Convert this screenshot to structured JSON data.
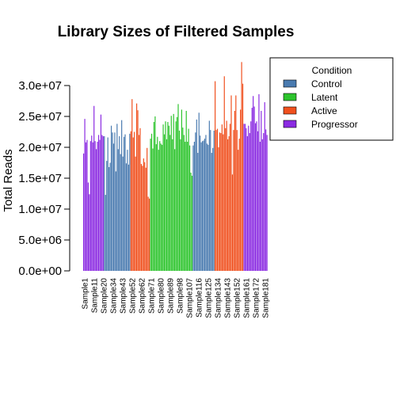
{
  "chart_data": {
    "type": "bar",
    "title": "Library Sizes of Filtered Samples",
    "xlabel": "",
    "ylabel": "Total Reads",
    "ylim": [
      0,
      30000000
    ],
    "yticks": [
      {
        "value": 0,
        "label": "0.0e+00"
      },
      {
        "value": 5000000,
        "label": "5.0e+06"
      },
      {
        "value": 10000000,
        "label": "1.0e+07"
      },
      {
        "value": 15000000,
        "label": "1.5e+07"
      },
      {
        "value": 20000000,
        "label": "2.0e+07"
      },
      {
        "value": 25000000,
        "label": "2.5e+07"
      },
      {
        "value": 30000000,
        "label": "3.0e+07"
      }
    ],
    "legend": {
      "title": "Condition",
      "placement": "top-right",
      "entries": [
        {
          "name": "Control",
          "color": "#4A7BB0"
        },
        {
          "name": "Latent",
          "color": "#2DC42D"
        },
        {
          "name": "Active",
          "color": "#F0501E"
        },
        {
          "name": "Progressor",
          "color": "#8B2BE2"
        }
      ]
    },
    "colors": {
      "Control": "#4A7BB0",
      "Latent": "#2DC42D",
      "Active": "#F0501E",
      "Progressor": "#8B2BE2"
    },
    "x_tick_labels": [
      "Sample1",
      "Sample11",
      "Sample20",
      "Sample34",
      "Sample43",
      "Sample52",
      "Sample62",
      "Sample71",
      "Sample80",
      "Sample89",
      "Sample98",
      "Sample107",
      "Sample116",
      "Sample125",
      "Sample134",
      "Sample143",
      "Sample152",
      "Sample161",
      "Sample172",
      "Sample181"
    ],
    "segments": [
      {
        "condition": "Progressor",
        "values": [
          19000000,
          24600000,
          20800000,
          21200000,
          14300000,
          12400000,
          21000000,
          21900000,
          20800000,
          26700000,
          21000000,
          19700000,
          20900000,
          22000000,
          21200000,
          25300000,
          22000000,
          21800000
        ]
      },
      {
        "condition": "Control",
        "values": [
          21800000,
          12300000,
          17800000,
          21600000,
          16800000,
          17500000,
          23500000,
          22400000,
          20600000,
          22400000,
          16100000,
          23800000,
          19700000,
          21800000,
          18900000,
          24400000,
          18500000,
          21700000,
          22100000,
          17400000,
          19600000,
          17200000,
          22200000
        ]
      },
      {
        "condition": "Active",
        "values": [
          22600000,
          27800000,
          21600000,
          22500000,
          18500000,
          27100000,
          26000000,
          22000000,
          23100000,
          17300000,
          17000000,
          18200000,
          17600000,
          16700000,
          19900000,
          12000000,
          11700000
        ]
      },
      {
        "condition": "Latent",
        "values": [
          21400000,
          22200000,
          19800000,
          24100000,
          25000000,
          20500000,
          21700000,
          19600000,
          21000000,
          20600000,
          20400000,
          23700000,
          22100000,
          24200000,
          21300000,
          24100000,
          23500000,
          22000000,
          25100000,
          21300000,
          25400000,
          19700000,
          24200000,
          24900000,
          27000000,
          22700000,
          21300000,
          26100000,
          23200000,
          22000000,
          20900000,
          25900000,
          20900000,
          23000000,
          20300000,
          15900000,
          15400000
        ]
      },
      {
        "condition": "Control",
        "values": [
          20300000,
          20900000,
          22400000,
          24500000,
          19100000,
          25600000,
          21900000,
          20800000,
          21000000,
          21100000,
          21400000,
          22000000,
          20600000,
          20400000,
          24300000,
          22800000,
          19100000,
          19900000,
          22700000
        ]
      },
      {
        "condition": "Active",
        "values": [
          30700000,
          22800000,
          23000000,
          20000000,
          22400000,
          22300000,
          23700000,
          22100000,
          31500000,
          23100000,
          24300000,
          21300000,
          21800000,
          23800000,
          28400000,
          15600000,
          22800000,
          25900000,
          28400000,
          22800000,
          19600000,
          21400000,
          26100000,
          33800000,
          30300000
        ]
      },
      {
        "condition": "Progressor",
        "values": [
          23800000,
          23800000,
          23100000,
          21800000,
          23500000,
          22300000,
          24200000,
          26400000,
          28300000,
          26600000,
          23900000,
          24200000,
          22600000,
          28600000,
          20900000,
          25900000,
          21300000,
          22300000,
          27300000,
          22900000,
          22000000
        ]
      }
    ]
  }
}
